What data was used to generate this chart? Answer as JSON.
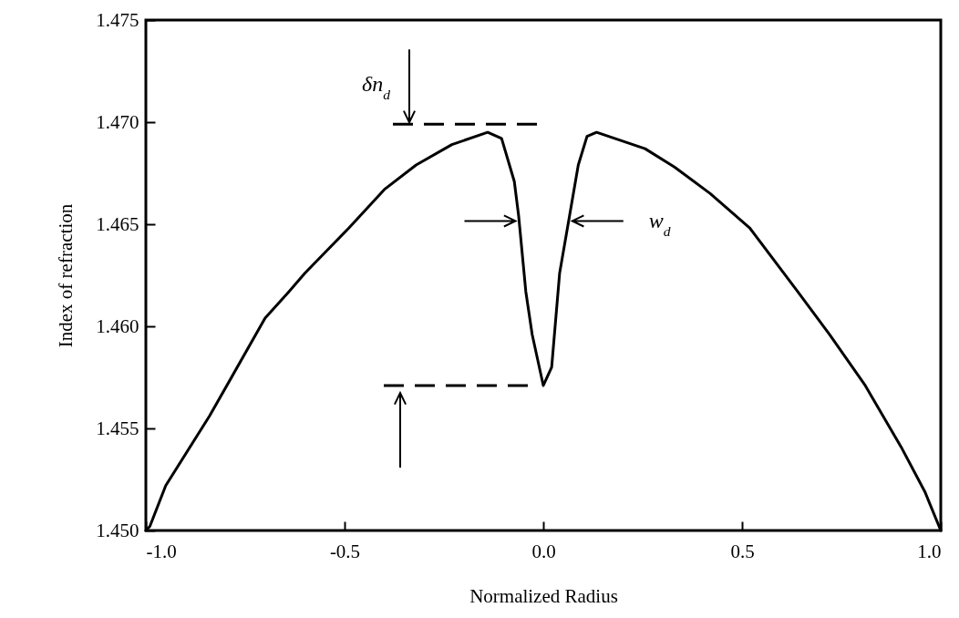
{
  "chart_data": {
    "type": "line",
    "xlabel": "Normalized Radius",
    "ylabel": "Index of refraction",
    "x": [
      -1.0,
      -0.99,
      -0.95,
      -0.84,
      -0.7,
      -0.64,
      -0.6,
      -0.49,
      -0.4,
      -0.32,
      -0.23,
      -0.14,
      -0.105,
      -0.073,
      -0.062,
      -0.044,
      -0.028,
      0.0,
      0.021,
      0.041,
      0.065,
      0.088,
      0.11,
      0.134,
      0.256,
      0.33,
      0.42,
      0.52,
      0.64,
      0.72,
      0.81,
      0.9,
      0.96,
      1.0
    ],
    "series": [
      {
        "color": "#000000",
        "values": [
          1.45,
          1.4502,
          1.4522,
          1.4556,
          1.4604,
          1.4617,
          1.4626,
          1.4648,
          1.4667,
          1.4679,
          1.4689,
          1.4695,
          1.4692,
          1.4671,
          1.4654,
          1.4617,
          1.4596,
          1.4571,
          1.458,
          1.4626,
          1.4653,
          1.4679,
          1.4693,
          1.4695,
          1.4687,
          1.4678,
          1.4665,
          1.4648,
          1.4617,
          1.4596,
          1.4571,
          1.4541,
          1.4519,
          1.45
        ]
      }
    ],
    "xlim": [
      -1.0,
      1.0
    ],
    "xticks": [
      {
        "value": -1.0,
        "label": "-1.0"
      },
      -0.5,
      {
        "value": 0.0,
        "label": "0.0"
      },
      0.5,
      {
        "value": 1.0,
        "label": "1.0"
      }
    ],
    "ylim": [
      1.45,
      1.475
    ],
    "yticks": [
      {
        "value": 1.45,
        "label": "1.450"
      },
      {
        "value": 1.455,
        "label": "1.455"
      },
      {
        "value": 1.46,
        "label": "1.460"
      },
      {
        "value": 1.465,
        "label": "1.465"
      },
      {
        "value": 1.47,
        "label": "1.470"
      },
      {
        "value": 1.475,
        "label": "1.475"
      }
    ],
    "annotations": [
      "δn$_{d}$",
      "w$_{d}$"
    ]
  }
}
